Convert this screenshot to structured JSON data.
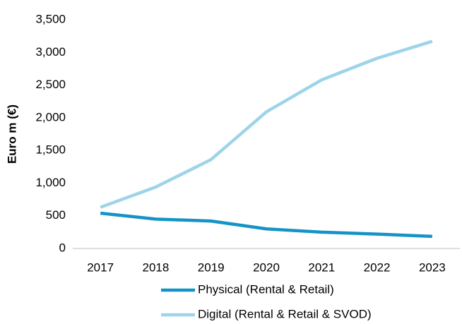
{
  "chart_data": {
    "type": "line",
    "y_label": "Euro m (€)",
    "categories": [
      "2017",
      "2018",
      "2019",
      "2020",
      "2021",
      "2022",
      "2023"
    ],
    "series": [
      {
        "name": "Physical (Rental & Retail)",
        "color": "#1593c6",
        "values": [
          540,
          450,
          420,
          300,
          250,
          220,
          185
        ]
      },
      {
        "name": "Digital (Rental & Retail & SVOD)",
        "color": "#9dd4e9",
        "values": [
          630,
          940,
          1360,
          2090,
          2580,
          2910,
          3170
        ]
      }
    ],
    "ylim": [
      0,
      3500
    ],
    "yticks": [
      0,
      500,
      {
        "value": 1000,
        "label": "1,000"
      },
      {
        "value": 1500,
        "label": "1,500"
      },
      {
        "value": 2000,
        "label": "2,000"
      },
      {
        "value": 2500,
        "label": "2,500"
      },
      {
        "value": 3000,
        "label": "3,000"
      },
      {
        "value": 3500,
        "label": "3,500"
      }
    ],
    "grid": false,
    "legend": "bottom"
  }
}
